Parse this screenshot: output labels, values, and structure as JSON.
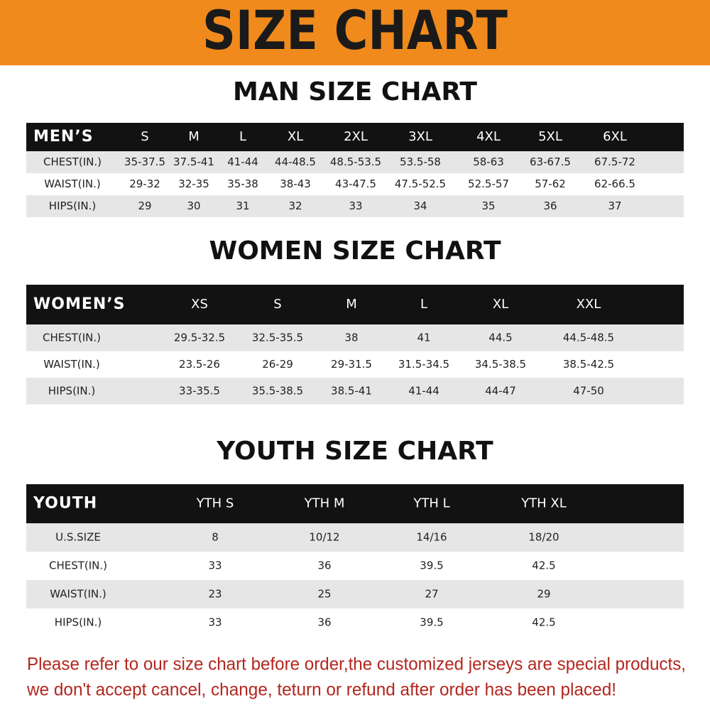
{
  "header": {
    "title": "SIZE CHART"
  },
  "men": {
    "title": "MAN SIZE CHART",
    "columns": [
      "MEN’S",
      "S",
      "M",
      "L",
      "XL",
      "2XL",
      "3XL",
      "4XL",
      "5XL",
      "6XL"
    ],
    "rows": [
      [
        "CHEST(IN.)",
        "35-37.5",
        "37.5-41",
        "41-44",
        "44-48.5",
        "48.5-53.5",
        "53.5-58",
        "58-63",
        "63-67.5",
        "67.5-72"
      ],
      [
        "WAIST(IN.)",
        "29-32",
        "32-35",
        "35-38",
        "38-43",
        "43-47.5",
        "47.5-52.5",
        "52.5-57",
        "57-62",
        "62-66.5"
      ],
      [
        "HIPS(IN.)",
        "29",
        "30",
        "31",
        "32",
        "33",
        "34",
        "35",
        "36",
        "37"
      ]
    ]
  },
  "women": {
    "title": "WOMEN SIZE CHART",
    "columns": [
      "WOMEN’S",
      "XS",
      "S",
      "M",
      "L",
      "XL",
      "XXL"
    ],
    "rows": [
      [
        "CHEST(IN.)",
        "29.5-32.5",
        "32.5-35.5",
        "38",
        "41",
        "44.5",
        "44.5-48.5"
      ],
      [
        "WAIST(IN.)",
        "23.5-26",
        "26-29",
        "29-31.5",
        "31.5-34.5",
        "34.5-38.5",
        "38.5-42.5"
      ],
      [
        "HIPS(IN.)",
        "33-35.5",
        "35.5-38.5",
        "38.5-41",
        "41-44",
        "44-47",
        "47-50"
      ]
    ]
  },
  "youth": {
    "title": "YOUTH SIZE CHART",
    "columns": [
      "YOUTH",
      "YTH S",
      "YTH M",
      "YTH L",
      "YTH XL"
    ],
    "rows": [
      [
        "U.S.SIZE",
        "8",
        "10/12",
        "14/16",
        "18/20"
      ],
      [
        "CHEST(IN.)",
        "33",
        "36",
        "39.5",
        "42.5"
      ],
      [
        "WAIST(IN.)",
        "23",
        "25",
        "27",
        "29"
      ],
      [
        "HIPS(IN.)",
        "33",
        "36",
        "39.5",
        "42.5"
      ]
    ]
  },
  "footer": {
    "lines": [
      "Please refer to our size chart before order,the customized jerseys are special products,",
      "we don't accept cancel, change, teturn or refund after order has been placed!"
    ]
  }
}
